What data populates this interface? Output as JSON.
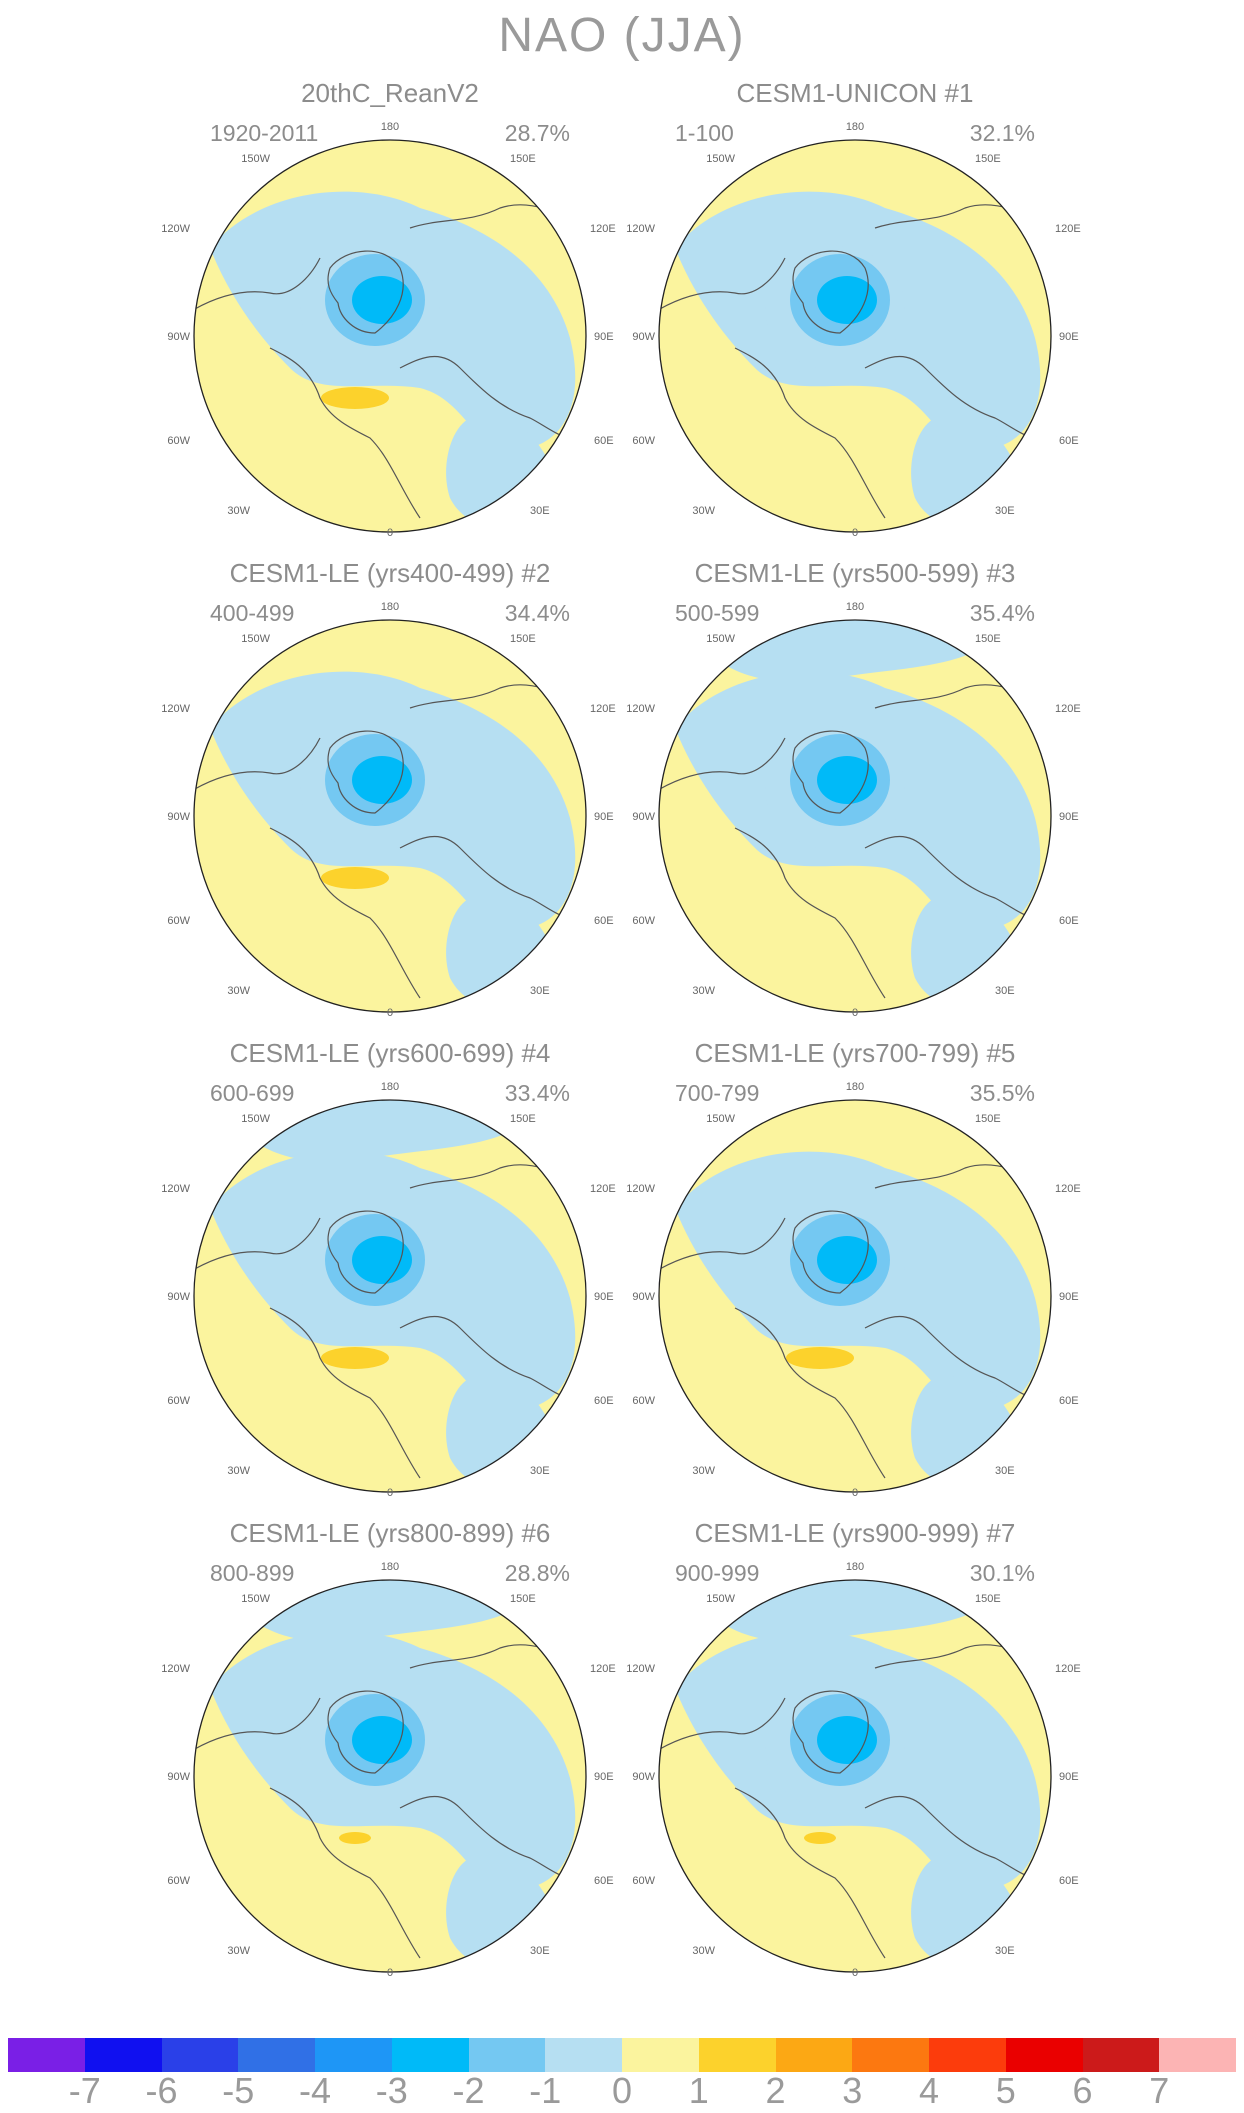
{
  "title": "NAO (JJA)",
  "panels": [
    {
      "title": "20thC_ReanV2",
      "period": "1920-2011",
      "variance": "28.7%",
      "north_low": false,
      "south_high": true,
      "big_high": true
    },
    {
      "title": "CESM1-UNICON        #1",
      "period": "1-100",
      "variance": "32.1%",
      "north_low": false,
      "south_high": false,
      "big_high": false
    },
    {
      "title": "CESM1-LE (yrs400-499) #2",
      "period": "400-499",
      "variance": "34.4%",
      "north_low": false,
      "south_high": true,
      "big_high": true
    },
    {
      "title": "CESM1-LE (yrs500-599) #3",
      "period": "500-599",
      "variance": "35.4%",
      "north_low": true,
      "south_high": false,
      "big_high": false
    },
    {
      "title": "CESM1-LE (yrs600-699) #4",
      "period": "600-699",
      "variance": "33.4%",
      "north_low": true,
      "south_high": true,
      "big_high": true
    },
    {
      "title": "CESM1-LE (yrs700-799) #5",
      "period": "700-799",
      "variance": "35.5%",
      "north_low": false,
      "south_high": true,
      "big_high": true
    },
    {
      "title": "CESM1-LE (yrs800-899) #6",
      "period": "800-899",
      "variance": "28.8%",
      "north_low": true,
      "south_high": true,
      "big_high": false
    },
    {
      "title": "CESM1-LE (yrs900-999) #7",
      "period": "900-999",
      "variance": "30.1%",
      "north_low": true,
      "south_high": true,
      "big_high": false
    }
  ],
  "map_labels": {
    "lon_180": "180",
    "lon_150w": "150W",
    "lon_150e": "150E",
    "lon_120w": "120W",
    "lon_120e": "120E",
    "lon_90w": "90W",
    "lon_90e": "90E",
    "lon_60w": "60W",
    "lon_60e": "60E",
    "lon_30w": "30W",
    "lon_30e": "30E",
    "lon_0": "0"
  },
  "colorbar": {
    "colors": [
      "#7a1fe6",
      "#1010f0",
      "#2a40e8",
      "#3070e6",
      "#1e96f6",
      "#00baf8",
      "#74c8f2",
      "#b6dff2",
      "#fbf49e",
      "#fcd22c",
      "#fca814",
      "#fc7810",
      "#fc3c0c",
      "#ea0000",
      "#cc1a1a",
      "#fcb4b4"
    ],
    "labels": [
      "-7",
      "-6",
      "-5",
      "-4",
      "-3",
      "-2",
      "-1",
      "0",
      "1",
      "2",
      "3",
      "4",
      "5",
      "6",
      "7"
    ]
  },
  "palette": {
    "positive_weak": "#fbf49e",
    "positive_mod": "#fcd22c",
    "negative_weak": "#b6dff2",
    "negative_mod": "#74c8f2",
    "negative_strong": "#00baf8",
    "coastline": "#555555"
  }
}
